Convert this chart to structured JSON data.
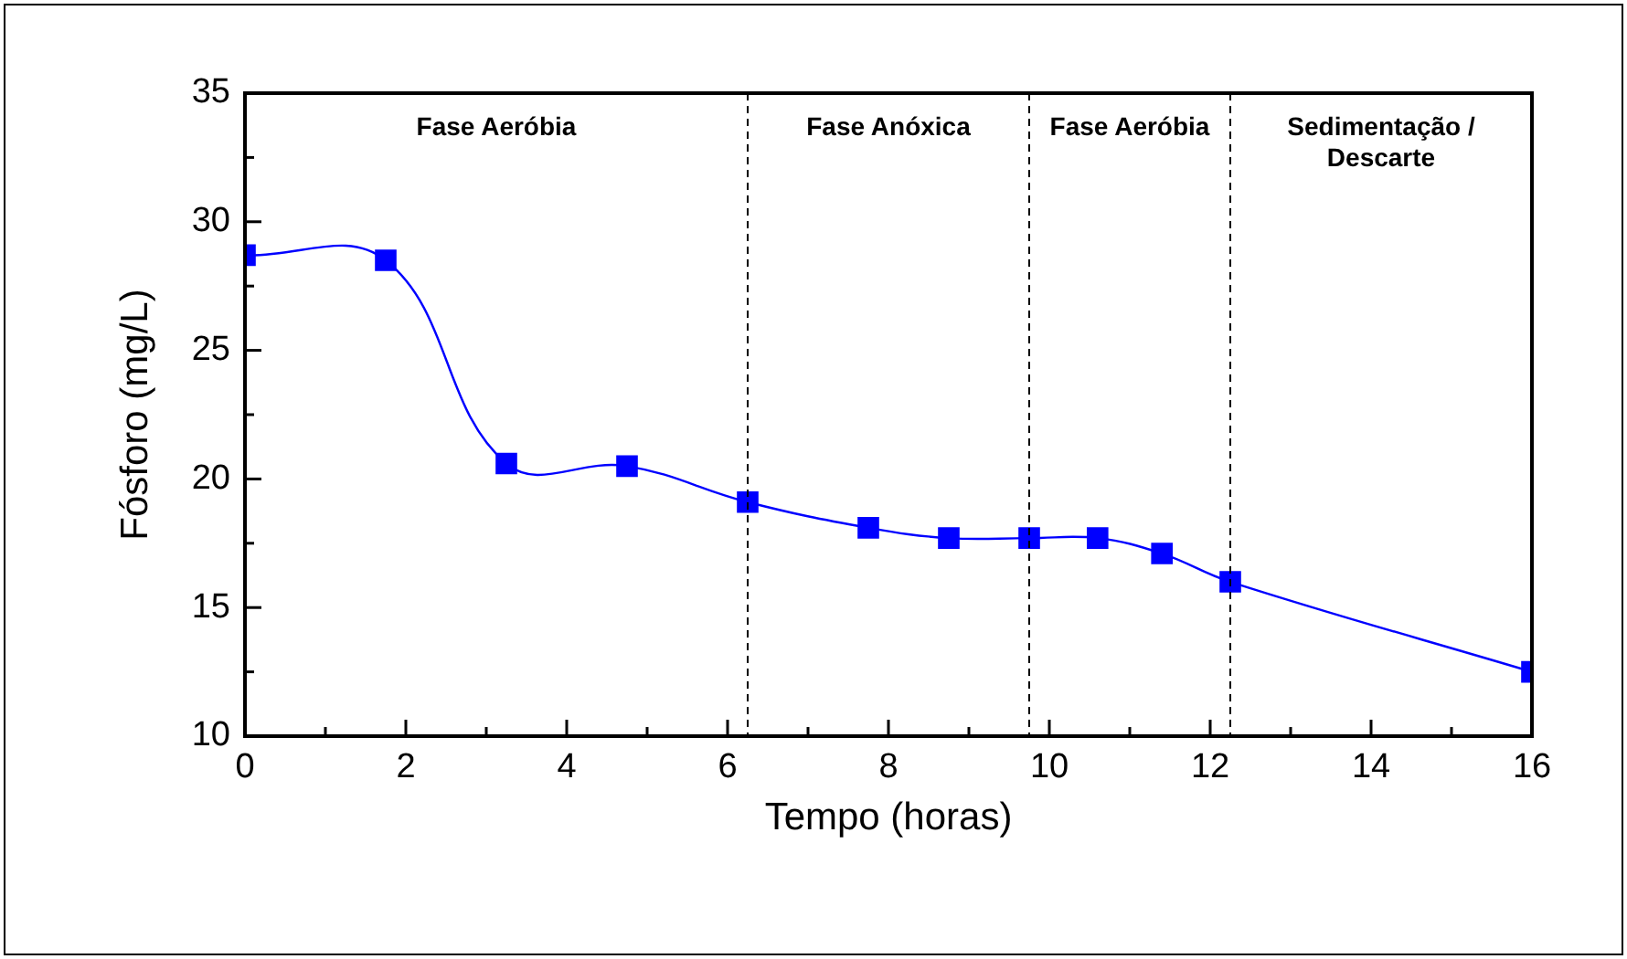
{
  "chart_data": {
    "type": "line",
    "xlabel": "Tempo (horas)",
    "ylabel": "Fósforo (mg/L)",
    "x": [
      0,
      1.75,
      3.25,
      4.75,
      6.25,
      7.75,
      8.75,
      9.75,
      10.6,
      11.4,
      12.25,
      16
    ],
    "series": [
      {
        "color": "#0000ff",
        "values": [
          28.7,
          28.5,
          20.6,
          20.5,
          19.1,
          18.1,
          17.7,
          17.7,
          17.7,
          17.1,
          16.0,
          12.5
        ]
      }
    ],
    "xlim": [
      0,
      16
    ],
    "ylim": [
      10,
      35
    ],
    "xticks": [
      0,
      {
        "value": 1,
        "label": null
      },
      2,
      {
        "value": 3,
        "label": null
      },
      4,
      {
        "value": 5,
        "label": null
      },
      6,
      {
        "value": 7,
        "label": null
      },
      8,
      {
        "value": 9,
        "label": null
      },
      10,
      {
        "value": 11,
        "label": null
      },
      12,
      {
        "value": 13,
        "label": null
      },
      14,
      {
        "value": 15,
        "label": null
      },
      16
    ],
    "yticks": [
      10,
      {
        "value": 12.5,
        "label": null
      },
      15,
      {
        "value": 17.5,
        "label": null
      },
      20,
      {
        "value": 22.5,
        "label": null
      },
      25,
      {
        "value": 27.5,
        "label": null
      },
      30,
      {
        "value": 32.5,
        "label": null
      },
      35
    ],
    "marker": "square",
    "line_style": "solid",
    "ref_lines": [
      {
        "axis": "x",
        "value": 6.25,
        "color": "#000000",
        "line_style": "dashed"
      },
      {
        "axis": "x",
        "value": 9.75,
        "color": "#000000",
        "line_style": "dashed"
      },
      {
        "axis": "x",
        "value": 12.25,
        "color": "#000000",
        "line_style": "dashed"
      }
    ],
    "annotations": [
      "Fase Aeróbia",
      "Fase Anóxica",
      "Fase Aeróbia",
      "Sedimentação / Descarte"
    ]
  }
}
